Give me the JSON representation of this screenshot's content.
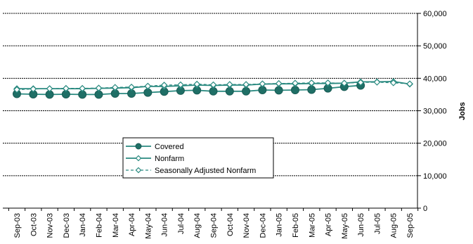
{
  "chart_data": {
    "type": "line",
    "title": "",
    "xlabel": "",
    "ylabel": "Jobs",
    "ylim": [
      0,
      60000
    ],
    "y_ticks": [
      0,
      10000,
      20000,
      30000,
      40000,
      50000,
      60000
    ],
    "y_tick_labels": [
      "0",
      "10,000",
      "20,000",
      "30,000",
      "40,000",
      "50,000",
      "60,000"
    ],
    "y_axis_side": "right",
    "grid": "horizontal dashed",
    "legend_position": "center-bottom",
    "categories": [
      "Sep-03",
      "Oct-03",
      "Nov-03",
      "Dec-03",
      "Jan-04",
      "Feb-04",
      "Mar-04",
      "Apr-04",
      "May-04",
      "Jun-04",
      "Jul-04",
      "Aug-04",
      "Sep-04",
      "Oct-04",
      "Nov-04",
      "Dec-04",
      "Jan-05",
      "Feb-05",
      "Mar-05",
      "Apr-05",
      "May-05",
      "Jun-05",
      "Jul-05",
      "Aug-05",
      "Sep-05"
    ],
    "series": [
      {
        "name": "Covered",
        "style": "solid line, filled circle markers",
        "color": "#2a8a80",
        "values": [
          35200,
          35100,
          35000,
          35100,
          35000,
          35000,
          35300,
          35300,
          35600,
          35900,
          36200,
          36300,
          36000,
          36000,
          36000,
          36400,
          36300,
          36400,
          36500,
          36900,
          37400,
          37800,
          null,
          null,
          null
        ]
      },
      {
        "name": "Nonfarm",
        "style": "solid line, open diamond markers",
        "color": "#2a8a80",
        "values": [
          36800,
          36800,
          36800,
          36800,
          36800,
          36900,
          37000,
          37100,
          37500,
          37500,
          37700,
          37900,
          37800,
          37900,
          37900,
          38200,
          38300,
          38300,
          38400,
          38400,
          38500,
          38900,
          38900,
          39000,
          38200
        ]
      },
      {
        "name": "Seasonally Adjusted Nonfarm",
        "style": "dashed line, open diamond markers",
        "color": "#2a8a80",
        "values": [
          36500,
          36700,
          36800,
          36900,
          36900,
          37000,
          37200,
          37300,
          37600,
          37900,
          38000,
          38200,
          38000,
          38100,
          38100,
          38300,
          38400,
          38500,
          38600,
          38600,
          38500,
          38700,
          38800,
          38600,
          38300
        ]
      }
    ]
  },
  "colors": {
    "line": "#2a8a80",
    "marker_fill": "#2a8a80",
    "grid": "#000000",
    "background": "#ffffff"
  }
}
